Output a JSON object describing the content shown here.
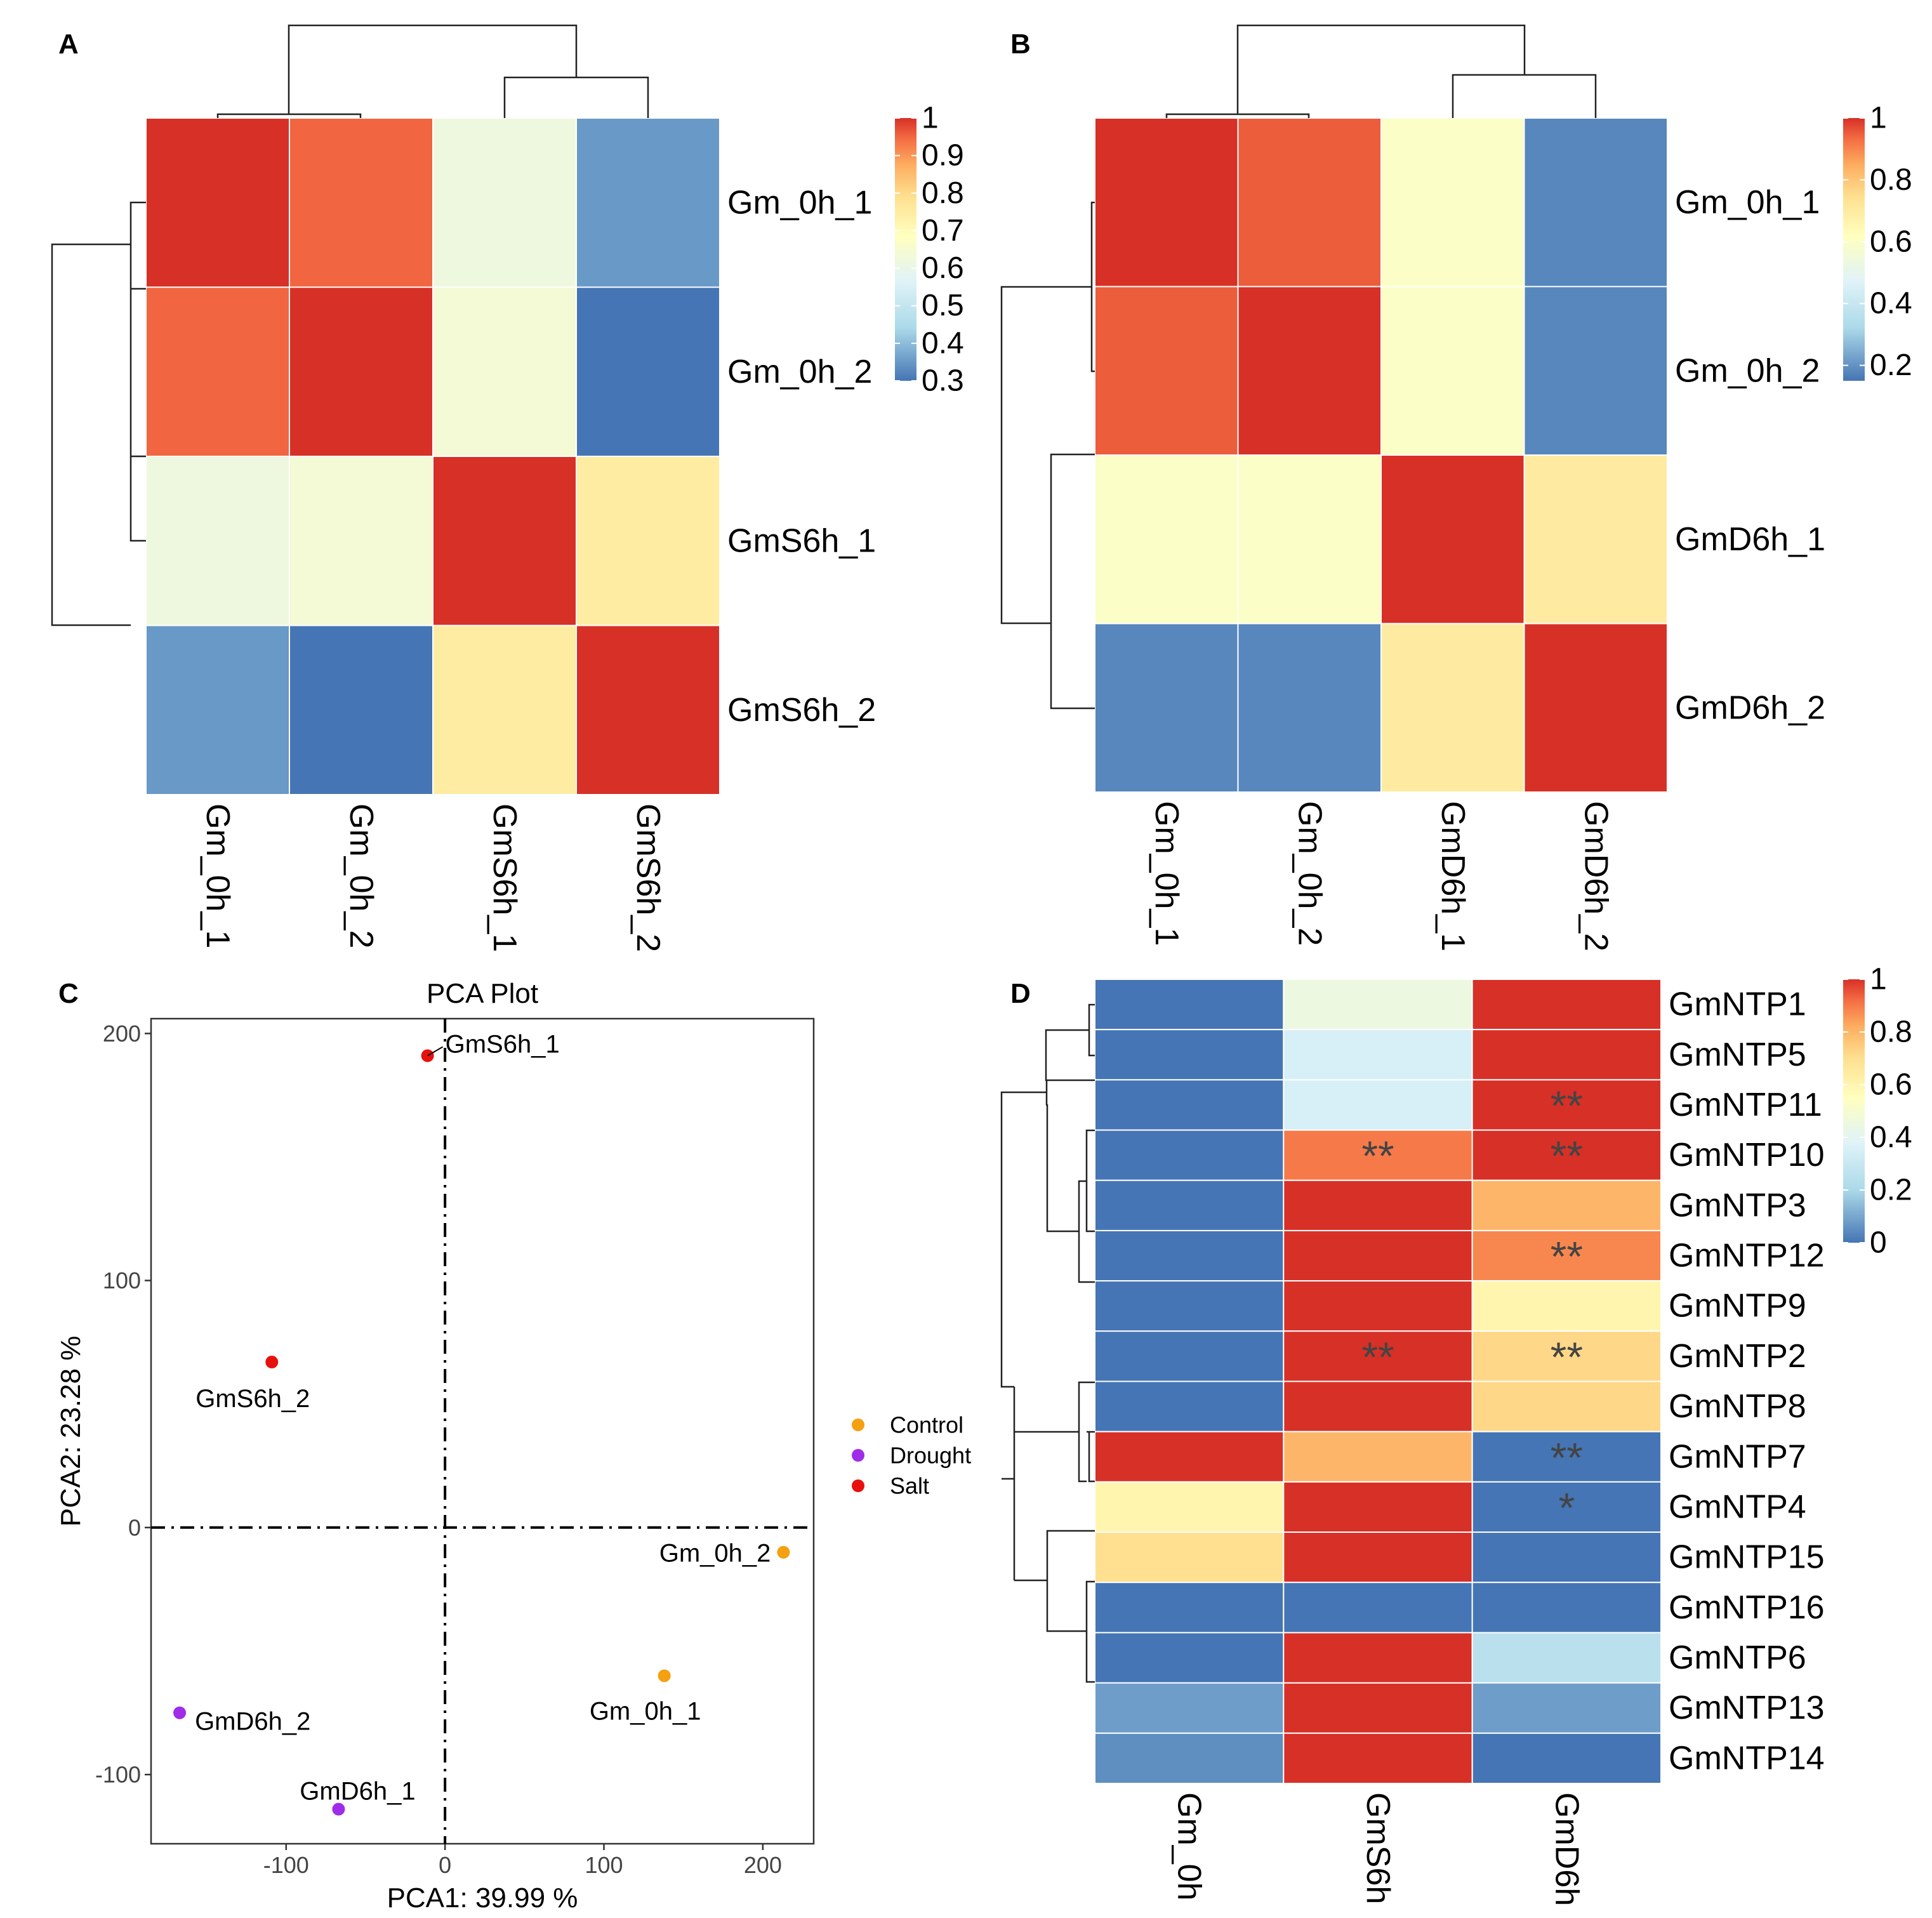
{
  "palette": {
    "red": "#D73027",
    "orange": "#F46D43",
    "light_orange": "#FDAE61",
    "yellow": "#FEE090",
    "cream": "#FFFFBF",
    "light_blue": "#E0F3F8",
    "sky": "#ABD9E9",
    "blue": "#4575B4",
    "control": "#F5A011",
    "drought": "#A02BE8",
    "salt": "#E8100C"
  },
  "chart_data": [
    {
      "panel": "A",
      "type": "heatmap",
      "title": "",
      "rows": [
        "Gm_0h_1",
        "Gm_0h_2",
        "GmS6h_1",
        "GmS6h_2"
      ],
      "columns": [
        "Gm_0h_1",
        "Gm_0h_2",
        "GmS6h_1",
        "GmS6h_2"
      ],
      "values": [
        [
          1.0,
          0.95,
          0.62,
          0.35
        ],
        [
          0.95,
          1.0,
          0.64,
          0.3
        ],
        [
          0.62,
          0.64,
          1.0,
          0.75
        ],
        [
          0.35,
          0.3,
          0.75,
          1.0
        ]
      ],
      "colorbar": {
        "min": 0.3,
        "max": 1,
        "ticks": [
          "1",
          "0.9",
          "0.8",
          "0.7",
          "0.6",
          "0.5",
          "0.4",
          "0.3"
        ]
      }
    },
    {
      "panel": "B",
      "type": "heatmap",
      "title": "",
      "rows": [
        "Gm_0h_1",
        "Gm_0h_2",
        "GmD6h_1",
        "GmD6h_2"
      ],
      "columns": [
        "Gm_0h_1",
        "Gm_0h_2",
        "GmD6h_1",
        "GmD6h_2"
      ],
      "values": [
        [
          1.0,
          0.95,
          0.6,
          0.18
        ],
        [
          0.95,
          1.0,
          0.6,
          0.18
        ],
        [
          0.6,
          0.6,
          1.0,
          0.7
        ],
        [
          0.18,
          0.18,
          0.7,
          1.0
        ]
      ],
      "colorbar": {
        "min": 0.15,
        "max": 1,
        "ticks": [
          "1",
          "0.8",
          "0.6",
          "0.4",
          "0.2"
        ]
      }
    },
    {
      "panel": "C",
      "type": "scatter",
      "title": "PCA Plot",
      "xlabel": "PCA1: 39.99 %",
      "ylabel": "PCA2: 23.28 %",
      "xlim": [
        -185,
        232
      ],
      "ylim": [
        -128,
        206
      ],
      "xticks": [
        "-100",
        "0",
        "100",
        "200"
      ],
      "yticks": [
        "-100",
        "0",
        "100",
        "200"
      ],
      "legend": [
        "Control",
        "Drought",
        "Salt"
      ],
      "points": [
        {
          "label": "GmS6h_1",
          "group": "Salt",
          "x": -11,
          "y": 191
        },
        {
          "label": "GmS6h_2",
          "group": "Salt",
          "x": -109,
          "y": 67
        },
        {
          "label": "Gm_0h_2",
          "group": "Control",
          "x": 213,
          "y": -10
        },
        {
          "label": "Gm_0h_1",
          "group": "Control",
          "x": 138,
          "y": -60
        },
        {
          "label": "GmD6h_2",
          "group": "Drought",
          "x": -167,
          "y": -75
        },
        {
          "label": "GmD6h_1",
          "group": "Drought",
          "x": -67,
          "y": -114
        }
      ]
    },
    {
      "panel": "D",
      "type": "heatmap",
      "title": "",
      "rows": [
        "GmNTP1",
        "GmNTP5",
        "GmNTP11",
        "GmNTP10",
        "GmNTP3",
        "GmNTP12",
        "GmNTP9",
        "GmNTP2",
        "GmNTP8",
        "GmNTP7",
        "GmNTP4",
        "GmNTP15",
        "GmNTP16",
        "GmNTP6",
        "GmNTP13",
        "GmNTP14"
      ],
      "columns": [
        "Gm_0h",
        "GmS6h",
        "GmD6h"
      ],
      "values": [
        [
          0.0,
          0.45,
          1.0
        ],
        [
          0.0,
          0.35,
          1.0
        ],
        [
          0.0,
          0.35,
          1.0
        ],
        [
          0.0,
          0.9,
          1.0
        ],
        [
          0.0,
          1.0,
          0.8
        ],
        [
          0.0,
          1.0,
          0.88
        ],
        [
          0.0,
          1.0,
          0.6
        ],
        [
          0.0,
          1.0,
          0.72
        ],
        [
          0.0,
          1.0,
          0.72
        ],
        [
          1.0,
          0.8,
          0.0
        ],
        [
          0.6,
          1.0,
          0.0
        ],
        [
          0.7,
          1.0,
          0.0
        ],
        [
          0.0,
          0.0,
          0.0
        ],
        [
          0.0,
          1.0,
          0.25
        ],
        [
          0.08,
          1.0,
          0.08
        ],
        [
          0.05,
          1.0,
          0.0
        ]
      ],
      "stars": [
        {
          "row": 2,
          "col": 2,
          "text": "**"
        },
        {
          "row": 3,
          "col": 1,
          "text": "**"
        },
        {
          "row": 3,
          "col": 2,
          "text": "**"
        },
        {
          "row": 5,
          "col": 2,
          "text": "**"
        },
        {
          "row": 7,
          "col": 1,
          "text": "**"
        },
        {
          "row": 7,
          "col": 2,
          "text": "**"
        },
        {
          "row": 9,
          "col": 2,
          "text": "**"
        },
        {
          "row": 10,
          "col": 2,
          "text": "*"
        }
      ],
      "colorbar": {
        "min": 0,
        "max": 1,
        "ticks": [
          "1",
          "0.8",
          "0.6",
          "0.4",
          "0.2",
          "0"
        ]
      }
    }
  ]
}
